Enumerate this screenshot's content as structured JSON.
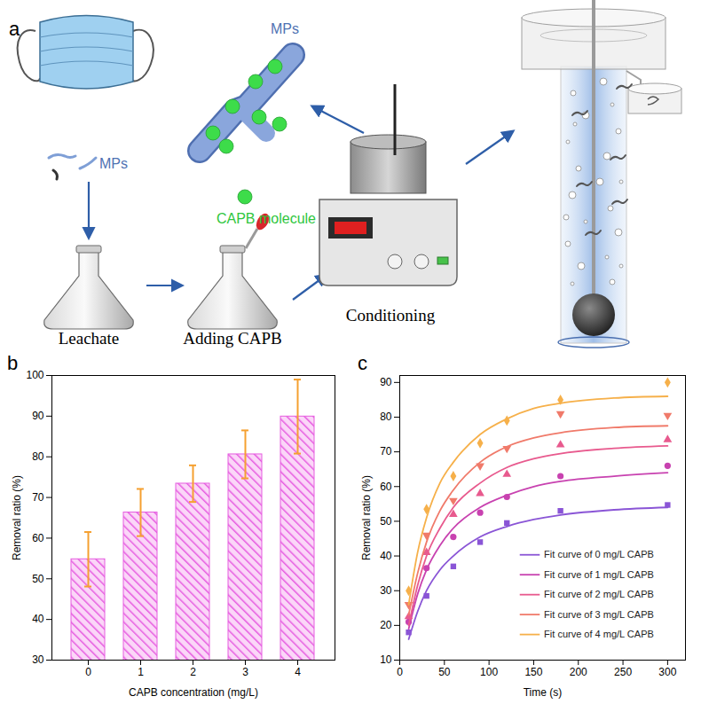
{
  "diagram": {
    "panel_label": "a",
    "labels": {
      "mps_leachate": "MPs",
      "mps_conditioned": "MPs",
      "capb_molecule": "CAPB molecule",
      "leachate": "Leachate",
      "adding_capb": "Adding CAPB",
      "conditioning": "Conditioning"
    }
  },
  "chart_data": [
    {
      "panel_label": "b",
      "type": "bar",
      "categories": [
        "0",
        "1",
        "2",
        "3",
        "4"
      ],
      "values": [
        54.8,
        66.3,
        73.4,
        80.6,
        89.9
      ],
      "errors": [
        6.7,
        5.8,
        4.5,
        5.9,
        9.1
      ],
      "color": "#e65ce0",
      "xlabel": "CAPB concentration (mg/L)",
      "ylabel": "Removal ratio (%)",
      "ylim": [
        30,
        100
      ],
      "yticks": [
        30,
        40,
        50,
        60,
        70,
        80,
        90,
        100
      ],
      "grid": false
    },
    {
      "panel_label": "c",
      "type": "scatter",
      "xlabel": "Time (s)",
      "ylabel": "Removal ratio (%)",
      "x": [
        10,
        30,
        60,
        90,
        120,
        180,
        300
      ],
      "fit_x": [
        10,
        20,
        30,
        45,
        60,
        90,
        120,
        150,
        180,
        240,
        300
      ],
      "xlim": [
        0,
        320
      ],
      "xticks": [
        0,
        50,
        100,
        150,
        200,
        250,
        300
      ],
      "ylim": [
        10,
        92
      ],
      "yticks": [
        10,
        20,
        30,
        40,
        50,
        60,
        70,
        80,
        90
      ],
      "grid": false,
      "legend": "lower right",
      "series": [
        {
          "name": "Fit curve of 0 mg/L CAPB",
          "color": "#8a55d6",
          "marker": "square",
          "values": [
            18,
            28.5,
            37,
            44,
            49.5,
            53,
            54.7
          ],
          "fit_values": [
            16,
            24,
            30,
            36,
            40,
            45.5,
            48.5,
            50.5,
            51.8,
            53.3,
            54
          ]
        },
        {
          "name": "Fit curve of 1 mg/L CAPB",
          "color": "#c842b0",
          "marker": "circle",
          "values": [
            21,
            36.5,
            45.5,
            52.5,
            57,
            63,
            66
          ],
          "fit_values": [
            19,
            29,
            36,
            43,
            48,
            54,
            57.5,
            60,
            61.5,
            63,
            64
          ]
        },
        {
          "name": "Fit curve of 2 mg/L CAPB",
          "color": "#e85a8e",
          "marker": "triangle",
          "values": [
            22.5,
            41,
            52,
            58,
            63.5,
            72,
            73.5
          ],
          "fit_values": [
            20,
            31.5,
            40,
            48,
            54,
            61,
            65.5,
            68,
            69.5,
            71,
            71.7
          ]
        },
        {
          "name": "Fit curve of 3 mg/L CAPB",
          "color": "#f07a6a",
          "marker": "triangle-down",
          "values": [
            26,
            46,
            56,
            66,
            71,
            81,
            80.5
          ],
          "fit_values": [
            23,
            35,
            44,
            53,
            59,
            67,
            71.5,
            74,
            75.5,
            77,
            77.5
          ]
        },
        {
          "name": "Fit curve of 4 mg/L CAPB",
          "color": "#f6b04a",
          "marker": "diamond",
          "values": [
            30,
            53.5,
            63,
            72.5,
            79,
            85,
            90
          ],
          "fit_values": [
            26,
            41,
            51,
            61,
            67,
            75,
            79.5,
            82.5,
            84,
            85.5,
            86
          ]
        }
      ]
    }
  ]
}
